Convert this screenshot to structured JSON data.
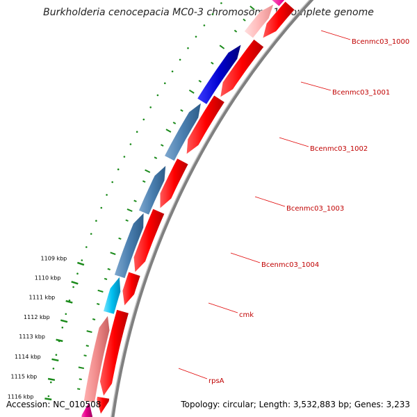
{
  "title": "Burkholderia cenocepacia MC0-3 chromosome 1, complete genome",
  "footer": {
    "accession": "Accession: NC_010508",
    "summary": "Topology: circular; Length: 3,532,883 bp; Genes: 3,233"
  },
  "scale_labels": [
    "1109 kbp",
    "1110 kbp",
    "1111 kbp",
    "1112 kbp",
    "1113 kbp",
    "1114 kbp",
    "1115 kbp",
    "1116 kbp"
  ],
  "gene_labels": [
    "Bcenmc03_1000",
    "Bcenmc03_1001",
    "Bcenmc03_1002",
    "Bcenmc03_1003",
    "Bcenmc03_1004",
    "cmk",
    "rpsA"
  ],
  "colors": {
    "cds_forward": "#ff0000",
    "cds_light": "#f58a8a",
    "cds_pink": "#ffb3b3",
    "gene_blue": "#0000cc",
    "gene_steel": "#4a7fb0",
    "gene_cyan": "#00bbee",
    "gene_magenta": "#e0008a",
    "tick_green": "#1a8a1a",
    "label_line": "#e00000",
    "backbone": "#808080"
  }
}
